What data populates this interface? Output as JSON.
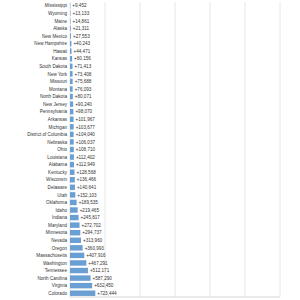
{
  "chart_data": {
    "type": "bar",
    "orientation": "horizontal",
    "color": "#6a9fd4",
    "grid": true,
    "data_labels": true,
    "tick_labels": "y",
    "categories": [
      "Mississippi",
      "Wyoming",
      "Maine",
      "Alaska",
      "New Mexico",
      "New Hampshire",
      "Hawaii",
      "Kansas",
      "South Dakota",
      "New York",
      "Missouri",
      "Montana",
      "North Dakota",
      "New Jersey",
      "Pennsylvania",
      "Arkansas",
      "Michigan",
      "District of Columbia",
      "Nebraska",
      "Ohio",
      "Louisiana",
      "Alabama",
      "Kentucky",
      "Wisconsin",
      "Delaware",
      "Utah",
      "Oklahoma",
      "Idaho",
      "Indiana",
      "Maryland",
      "Minnesota",
      "Nevada",
      "Oregon",
      "Massachusetts",
      "Washington",
      "Tennessee",
      "North Carolina",
      "Virginia",
      "Colorado"
    ],
    "values": [
      9452,
      13133,
      14861,
      21311,
      27553,
      40243,
      44471,
      60156,
      71413,
      73408,
      75688,
      76093,
      80071,
      90240,
      98070,
      101967,
      103677,
      104040,
      106037,
      108710,
      112402,
      112949,
      128568,
      136466,
      140641,
      152103,
      189535,
      219465,
      245817,
      272702,
      294737,
      313960,
      360993,
      407916,
      467291,
      512171,
      587290,
      632450,
      723444
    ],
    "value_labels": [
      "+9,452",
      "+13,133",
      "+14,861",
      "+21,311",
      "+27,553",
      "+40,243",
      "+44,471",
      "+60,156",
      "+71,413",
      "+73,408",
      "+75,688",
      "+76,093",
      "+80,071",
      "+90,240",
      "+98,070",
      "+101,967",
      "+103,677",
      "+104,040",
      "+106,037",
      "+108,710",
      "+112,402",
      "+112,949",
      "+128,568",
      "+136,466",
      "+140,641",
      "+152,103",
      "+189,535",
      "+219,465",
      "+245,817",
      "+272,702",
      "+294,737",
      "+313,960",
      "+360,993",
      "+407,916",
      "+467,291",
      "+512,171",
      "+587,290",
      "+632,450",
      "+723,444"
    ],
    "xlim": [
      0,
      6000000
    ],
    "xticks": [
      0,
      1000000,
      2000000,
      3000000,
      4000000,
      5000000,
      6000000
    ]
  }
}
